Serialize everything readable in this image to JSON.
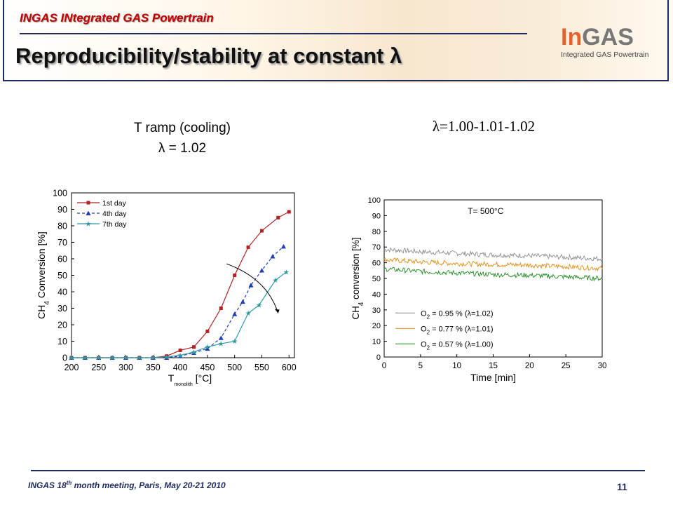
{
  "header": {
    "project": "INGAS INtegrated GAS Powertrain",
    "title": "Reproducibility/stability at constant λ",
    "logo_in": "In",
    "logo_gas": "GAS",
    "logo_sub": "Integrated GAS Powertrain"
  },
  "left_panel": {
    "subtitle_line1": "T ramp (cooling)",
    "subtitle_line2": "λ = 1.02"
  },
  "right_panel": {
    "subtitle": "λ=1.00-1.01-1.02"
  },
  "footer": {
    "meeting_pre": "INGAS 18",
    "meeting_sup": "th",
    "meeting_post": " month meeting, Paris, May 20-21 2010",
    "page_number": "11"
  },
  "chart_data": [
    {
      "type": "line",
      "ylabel_main": "CH",
      "ylabel_sub": "4",
      "ylabel_rest": " Conversion [%]",
      "xlabel_main": "T",
      "xlabel_sub": "monolith",
      "xlabel_rest": " [°C]",
      "xlim": [
        200,
        610
      ],
      "ylim": [
        0,
        100
      ],
      "xticks": [
        200,
        250,
        300,
        350,
        400,
        450,
        500,
        550,
        600
      ],
      "yticks": [
        0,
        10,
        20,
        30,
        40,
        50,
        60,
        70,
        80,
        90,
        100
      ],
      "legend_position": "top-left",
      "grid": false,
      "series": [
        {
          "name": "1st day",
          "color": "#b22222",
          "marker": "square",
          "dash": "solid",
          "x": [
            200,
            225,
            250,
            275,
            300,
            325,
            350,
            375,
            400,
            425,
            450,
            475,
            500,
            525,
            550,
            580,
            600
          ],
          "y": [
            0,
            0,
            0,
            0,
            0,
            0,
            0,
            1,
            4.5,
            6.5,
            16,
            30,
            50,
            67,
            77,
            85,
            88.5
          ]
        },
        {
          "name": "4th day",
          "color": "#1e3fb4",
          "marker": "triangle",
          "dash": "dashed",
          "x": [
            200,
            225,
            250,
            275,
            300,
            325,
            350,
            375,
            400,
            425,
            450,
            475,
            500,
            515,
            530,
            550,
            570,
            590
          ],
          "y": [
            0,
            0,
            0,
            0,
            0,
            0,
            0,
            0,
            1,
            3,
            5.5,
            12,
            26.5,
            34,
            44,
            53,
            61.5,
            67.5
          ]
        },
        {
          "name": "7th day",
          "color": "#2e9aa0",
          "marker": "star",
          "dash": "solid",
          "x": [
            200,
            225,
            250,
            275,
            300,
            325,
            350,
            375,
            400,
            425,
            450,
            475,
            500,
            525,
            545,
            575,
            595
          ],
          "y": [
            0,
            0,
            0,
            0,
            0,
            0,
            0,
            0.5,
            1.5,
            3.5,
            6.5,
            8.5,
            10,
            27,
            32,
            47,
            52
          ]
        }
      ]
    },
    {
      "type": "line",
      "annotation": "T= 500°C",
      "ylabel_main": "CH",
      "ylabel_sub": "4",
      "ylabel_rest": " conversion [%]",
      "xlabel": "Time [min]",
      "xlim": [
        0,
        30
      ],
      "ylim": [
        0,
        100
      ],
      "xticks": [
        0,
        5,
        10,
        15,
        20,
        25,
        30
      ],
      "yticks": [
        0,
        10,
        20,
        30,
        40,
        50,
        60,
        70,
        80,
        90,
        100
      ],
      "legend_position": "bottom-left",
      "grid": false,
      "series": [
        {
          "label_o": "O",
          "label_sub": "2",
          "label_rest": " = 0.95 % (λ=1.02)",
          "color": "#8c8c8c",
          "x": [
            0,
            5,
            10,
            15,
            20,
            25,
            30
          ],
          "y": [
            68.5,
            67,
            66,
            65,
            64.5,
            63.5,
            62.5
          ]
        },
        {
          "label_o": "O",
          "label_sub": "2",
          "label_rest": " = 0.77 % (λ=1.01)",
          "color": "#e08a10",
          "x": [
            0,
            5,
            10,
            15,
            20,
            25,
            30
          ],
          "y": [
            62,
            60.5,
            59.5,
            59,
            58.5,
            57.5,
            56.5
          ]
        },
        {
          "label_o": "O",
          "label_sub": "2",
          "label_rest": " = 0.57 % (λ=1.00)",
          "color": "#1f8a1f",
          "x": [
            0,
            5,
            10,
            15,
            20,
            25,
            30
          ],
          "y": [
            56,
            54.5,
            53.5,
            52.5,
            52,
            51,
            50
          ]
        }
      ]
    }
  ]
}
